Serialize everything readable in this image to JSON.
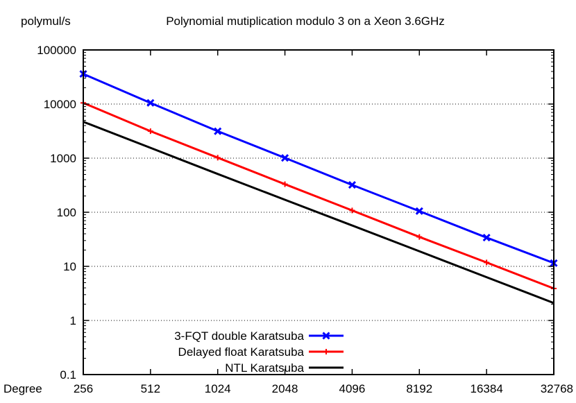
{
  "chart_data": {
    "type": "line",
    "title": "Polynomial mutiplication modulo 3 on a Xeon 3.6GHz",
    "ylabel": "polymul/s",
    "xlabel": "Degree",
    "x": [
      256,
      512,
      1024,
      2048,
      4096,
      8192,
      16384,
      32768
    ],
    "x_tick_labels": [
      "256",
      "512",
      "1024",
      "2048",
      "4096",
      "8192",
      "16384",
      "32768"
    ],
    "y_scale": "log",
    "ylim": [
      0.1,
      100000
    ],
    "y_tick_values": [
      0.1,
      1,
      10,
      100,
      1000,
      10000,
      100000
    ],
    "y_tick_labels": [
      "0.1",
      "1",
      "10",
      "100",
      "1000",
      "10000",
      "100000"
    ],
    "grid": "horizontal dotted",
    "legend_position": "bottom-left",
    "series": [
      {
        "name": "3-FQT double Karatsuba",
        "color": "#0000ff",
        "marker": "x",
        "values": [
          36000,
          10500,
          3150,
          1010,
          320,
          105,
          34,
          11.5
        ]
      },
      {
        "name": "Delayed float Karatsuba",
        "color": "#ff0000",
        "marker": "plus",
        "values": [
          10500,
          3150,
          1020,
          330,
          108,
          35,
          11.8,
          3.9
        ]
      },
      {
        "name": "NTL Karatsuba",
        "color": "#000000",
        "marker": "none",
        "values": [
          4700,
          1550,
          510,
          170,
          57,
          19,
          6.3,
          2.1
        ]
      }
    ]
  }
}
